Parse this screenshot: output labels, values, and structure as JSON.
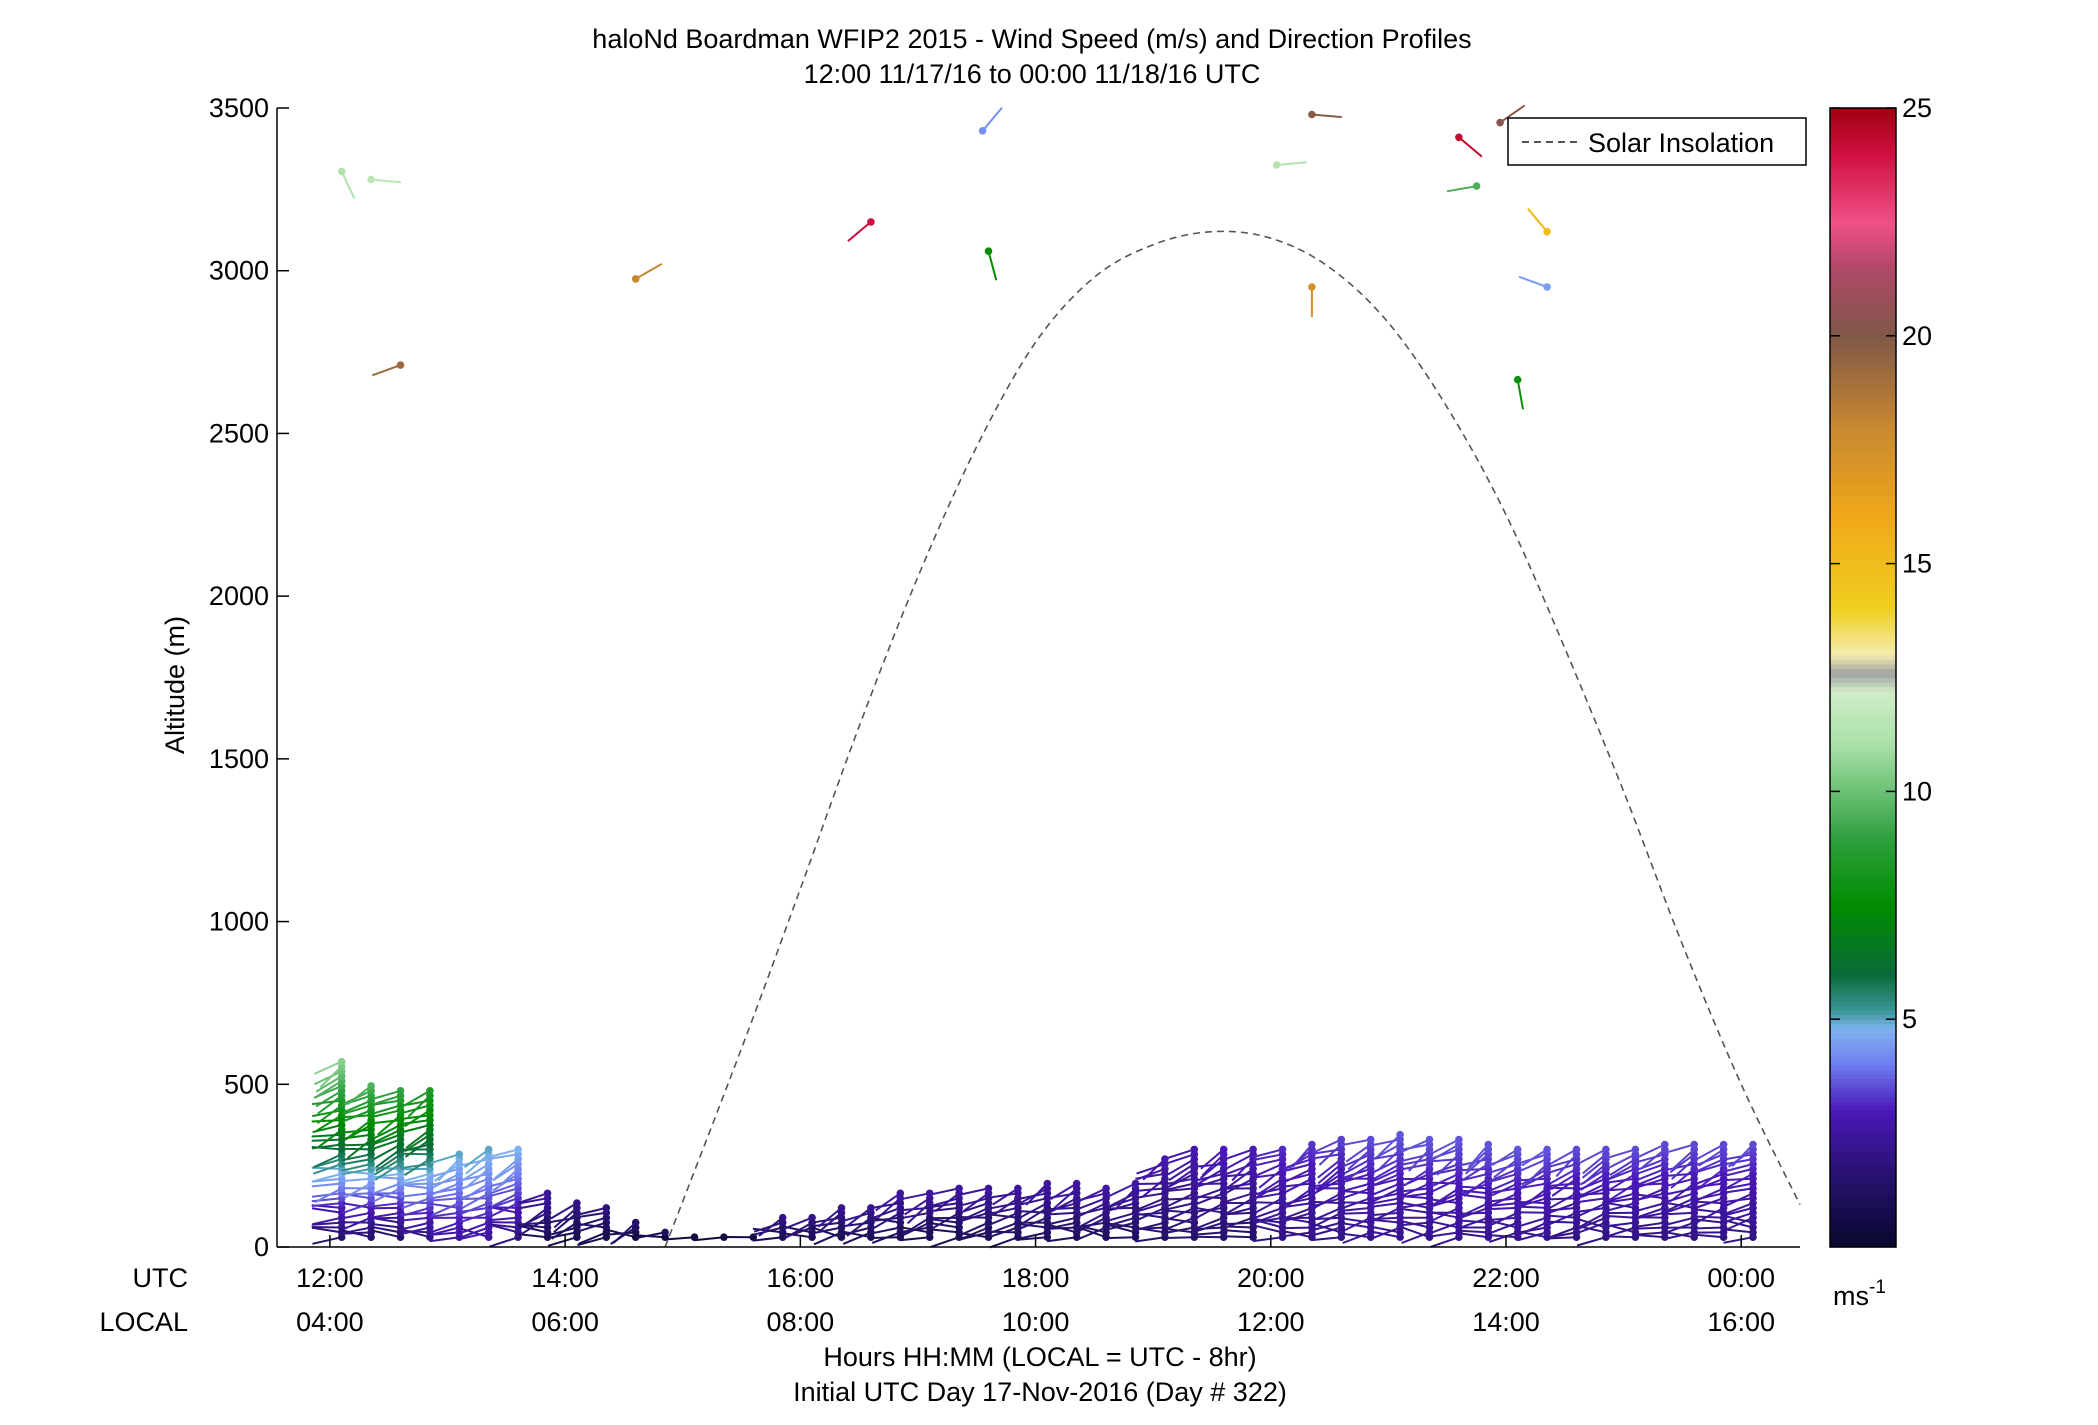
{
  "chart_data": {
    "type": "scatter",
    "title": "haloNd Boardman WFIP2 2015 - Wind Speed (m/s) and Direction Profiles",
    "subtitle": "12:00 11/17/16 to 00:00 11/18/16  UTC",
    "ylabel": "Altitude (m)",
    "xlabel": "Hours HH:MM  (LOCAL = UTC - 8hr)",
    "xlabel2": "Initial UTC Day 17-Nov-2016 (Day # 322)",
    "row_labels": {
      "utc": "UTC",
      "local": "LOCAL"
    },
    "x_unit": "hours UTC",
    "xlim": [
      11.55,
      24.5
    ],
    "ylim": [
      0,
      3500
    ],
    "x_ticks": [
      {
        "x": 12,
        "utc": "12:00",
        "local": "04:00"
      },
      {
        "x": 14,
        "utc": "14:00",
        "local": "06:00"
      },
      {
        "x": 16,
        "utc": "16:00",
        "local": "08:00"
      },
      {
        "x": 18,
        "utc": "18:00",
        "local": "10:00"
      },
      {
        "x": 20,
        "utc": "20:00",
        "local": "12:00"
      },
      {
        "x": 22,
        "utc": "22:00",
        "local": "14:00"
      },
      {
        "x": 24,
        "utc": "00:00",
        "local": "16:00"
      }
    ],
    "y_ticks": [
      {
        "y": 0,
        "label": "0"
      },
      {
        "y": 500,
        "label": "500"
      },
      {
        "y": 1000,
        "label": "1000"
      },
      {
        "y": 1500,
        "label": "1500"
      },
      {
        "y": 2000,
        "label": "2000"
      },
      {
        "y": 2500,
        "label": "2500"
      },
      {
        "y": 3000,
        "label": "3000"
      },
      {
        "y": 3500,
        "label": "3500"
      }
    ],
    "legend": {
      "label": "Solar Insolation",
      "position": "top-right"
    },
    "colorbar": {
      "unit": "ms-1",
      "unit_base": "ms",
      "unit_exp": "-1",
      "range": [
        0,
        25
      ],
      "ticks": [
        {
          "v": 5,
          "label": "5"
        },
        {
          "v": 10,
          "label": "10"
        },
        {
          "v": 15,
          "label": "15"
        },
        {
          "v": 20,
          "label": "20"
        },
        {
          "v": 25,
          "label": "25"
        }
      ],
      "stops": [
        {
          "v": 0,
          "color": "#08082e"
        },
        {
          "v": 1.5,
          "color": "#26116b"
        },
        {
          "v": 3,
          "color": "#4a18b8"
        },
        {
          "v": 4,
          "color": "#6f7cf0"
        },
        {
          "v": 4.8,
          "color": "#7fb3f0"
        },
        {
          "v": 5.2,
          "color": "#3a9696"
        },
        {
          "v": 6,
          "color": "#0a6a3a"
        },
        {
          "v": 7.5,
          "color": "#008c00"
        },
        {
          "v": 9,
          "color": "#30a040"
        },
        {
          "v": 11,
          "color": "#a8e0a8"
        },
        {
          "v": 12.2,
          "color": "#d0ecc8"
        },
        {
          "v": 12.6,
          "color": "#a0a0a0"
        },
        {
          "v": 13,
          "color": "#f4ecb0"
        },
        {
          "v": 14,
          "color": "#f0d020"
        },
        {
          "v": 16,
          "color": "#f0a818"
        },
        {
          "v": 18,
          "color": "#c88830"
        },
        {
          "v": 20,
          "color": "#805848"
        },
        {
          "v": 21.5,
          "color": "#b04868"
        },
        {
          "v": 22.5,
          "color": "#f05088"
        },
        {
          "v": 24,
          "color": "#d01040"
        },
        {
          "v": 25,
          "color": "#a00010"
        }
      ]
    },
    "solar_insolation": {
      "style": "dashed",
      "points": [
        [
          14.85,
          0
        ],
        [
          15.5,
          610
        ],
        [
          16,
          1100
        ],
        [
          16.5,
          1600
        ],
        [
          17,
          2060
        ],
        [
          17.5,
          2460
        ],
        [
          18,
          2780
        ],
        [
          18.5,
          2980
        ],
        [
          19,
          3080
        ],
        [
          19.5,
          3120
        ],
        [
          20,
          3100
        ],
        [
          20.5,
          3010
        ],
        [
          21,
          2840
        ],
        [
          21.5,
          2580
        ],
        [
          22,
          2250
        ],
        [
          22.5,
          1840
        ],
        [
          23,
          1400
        ],
        [
          23.5,
          930
        ],
        [
          24,
          500
        ],
        [
          24.5,
          130
        ]
      ]
    },
    "isolated_barbs": [
      {
        "x": 12.1,
        "alt": 3305,
        "dir_deg": 155,
        "speed": 11.2
      },
      {
        "x": 12.35,
        "alt": 3280,
        "dir_deg": 95,
        "speed": 11.5
      },
      {
        "x": 12.6,
        "alt": 2710,
        "dir_deg": 250,
        "speed": 19.2
      },
      {
        "x": 14.6,
        "alt": 2975,
        "dir_deg": 60,
        "speed": 18.0
      },
      {
        "x": 16.6,
        "alt": 3150,
        "dir_deg": 230,
        "speed": 24.0
      },
      {
        "x": 17.55,
        "alt": 3430,
        "dir_deg": 40,
        "speed": 4.3
      },
      {
        "x": 17.6,
        "alt": 3060,
        "dir_deg": 165,
        "speed": 7.5
      },
      {
        "x": 20.05,
        "alt": 3325,
        "dir_deg": 85,
        "speed": 11.3
      },
      {
        "x": 20.35,
        "alt": 3480,
        "dir_deg": 95,
        "speed": 19.8
      },
      {
        "x": 20.35,
        "alt": 2950,
        "dir_deg": 180,
        "speed": 17.5
      },
      {
        "x": 21.6,
        "alt": 3410,
        "dir_deg": 130,
        "speed": 24.3
      },
      {
        "x": 21.75,
        "alt": 3260,
        "dir_deg": 260,
        "speed": 9.5
      },
      {
        "x": 21.95,
        "alt": 3455,
        "dir_deg": 55,
        "speed": 20.3
      },
      {
        "x": 22.1,
        "alt": 2665,
        "dir_deg": 170,
        "speed": 7.8
      },
      {
        "x": 22.35,
        "alt": 3120,
        "dir_deg": 320,
        "speed": 15.0
      },
      {
        "x": 22.35,
        "alt": 2950,
        "dir_deg": 290,
        "speed": 4.5
      }
    ],
    "profile_times": [
      12.1,
      12.35,
      12.6,
      12.85,
      13.1,
      13.35,
      13.6,
      13.85,
      14.1,
      14.35,
      14.6,
      14.85,
      15.1,
      15.35,
      15.6,
      15.85,
      16.1,
      16.35,
      16.6,
      16.85,
      17.1,
      17.35,
      17.6,
      17.85,
      18.1,
      18.35,
      18.6,
      18.85,
      19.1,
      19.35,
      19.6,
      19.85,
      20.1,
      20.35,
      20.6,
      20.85,
      21.1,
      21.35,
      21.6,
      21.85,
      22.1,
      22.35,
      22.6,
      22.85,
      23.1,
      23.35,
      23.6,
      23.85,
      24.1
    ],
    "profile_tops_m": [
      575,
      495,
      480,
      480,
      295,
      300,
      305,
      170,
      145,
      130,
      80,
      45,
      30,
      25,
      30,
      90,
      100,
      120,
      120,
      170,
      175,
      185,
      185,
      190,
      195,
      200,
      190,
      195,
      275,
      300,
      310,
      300,
      305,
      320,
      330,
      340,
      345,
      340,
      330,
      320,
      310,
      305,
      310,
      310,
      310,
      315,
      320,
      325,
      325
    ],
    "profile_speed_ranges": [
      [
        1.5,
        10.5
      ],
      [
        1.5,
        9.5
      ],
      [
        1.5,
        9.0
      ],
      [
        2.0,
        8.5
      ],
      [
        2.5,
        5.0
      ],
      [
        2.5,
        5.0
      ],
      [
        2.0,
        4.8
      ],
      [
        1.0,
        2.5
      ],
      [
        0.8,
        2.0
      ],
      [
        0.8,
        1.8
      ],
      [
        0.5,
        1.5
      ],
      [
        0.5,
        1.2
      ],
      [
        0.5,
        1.0
      ],
      [
        0.5,
        1.0
      ],
      [
        0.5,
        1.2
      ],
      [
        1.0,
        2.0
      ],
      [
        1.0,
        2.0
      ],
      [
        1.0,
        2.2
      ],
      [
        1.0,
        2.2
      ],
      [
        1.0,
        2.5
      ],
      [
        1.0,
        2.5
      ],
      [
        1.0,
        2.5
      ],
      [
        1.0,
        2.5
      ],
      [
        1.2,
        2.5
      ],
      [
        1.2,
        2.5
      ],
      [
        1.2,
        2.6
      ],
      [
        1.2,
        2.6
      ],
      [
        1.2,
        2.6
      ],
      [
        1.5,
        2.8
      ],
      [
        1.5,
        2.8
      ],
      [
        1.5,
        3.0
      ],
      [
        1.5,
        3.0
      ],
      [
        2.0,
        3.2
      ],
      [
        2.0,
        3.3
      ],
      [
        2.0,
        3.4
      ],
      [
        2.2,
        3.5
      ],
      [
        2.2,
        3.6
      ],
      [
        2.2,
        3.6
      ],
      [
        2.2,
        3.6
      ],
      [
        2.2,
        3.6
      ],
      [
        2.2,
        3.6
      ],
      [
        2.2,
        3.6
      ],
      [
        2.0,
        3.5
      ],
      [
        2.0,
        3.5
      ],
      [
        2.0,
        3.5
      ],
      [
        2.0,
        3.5
      ],
      [
        2.0,
        3.5
      ],
      [
        2.0,
        3.5
      ],
      [
        2.0,
        3.5
      ]
    ],
    "gate_spacing_m": 15
  }
}
